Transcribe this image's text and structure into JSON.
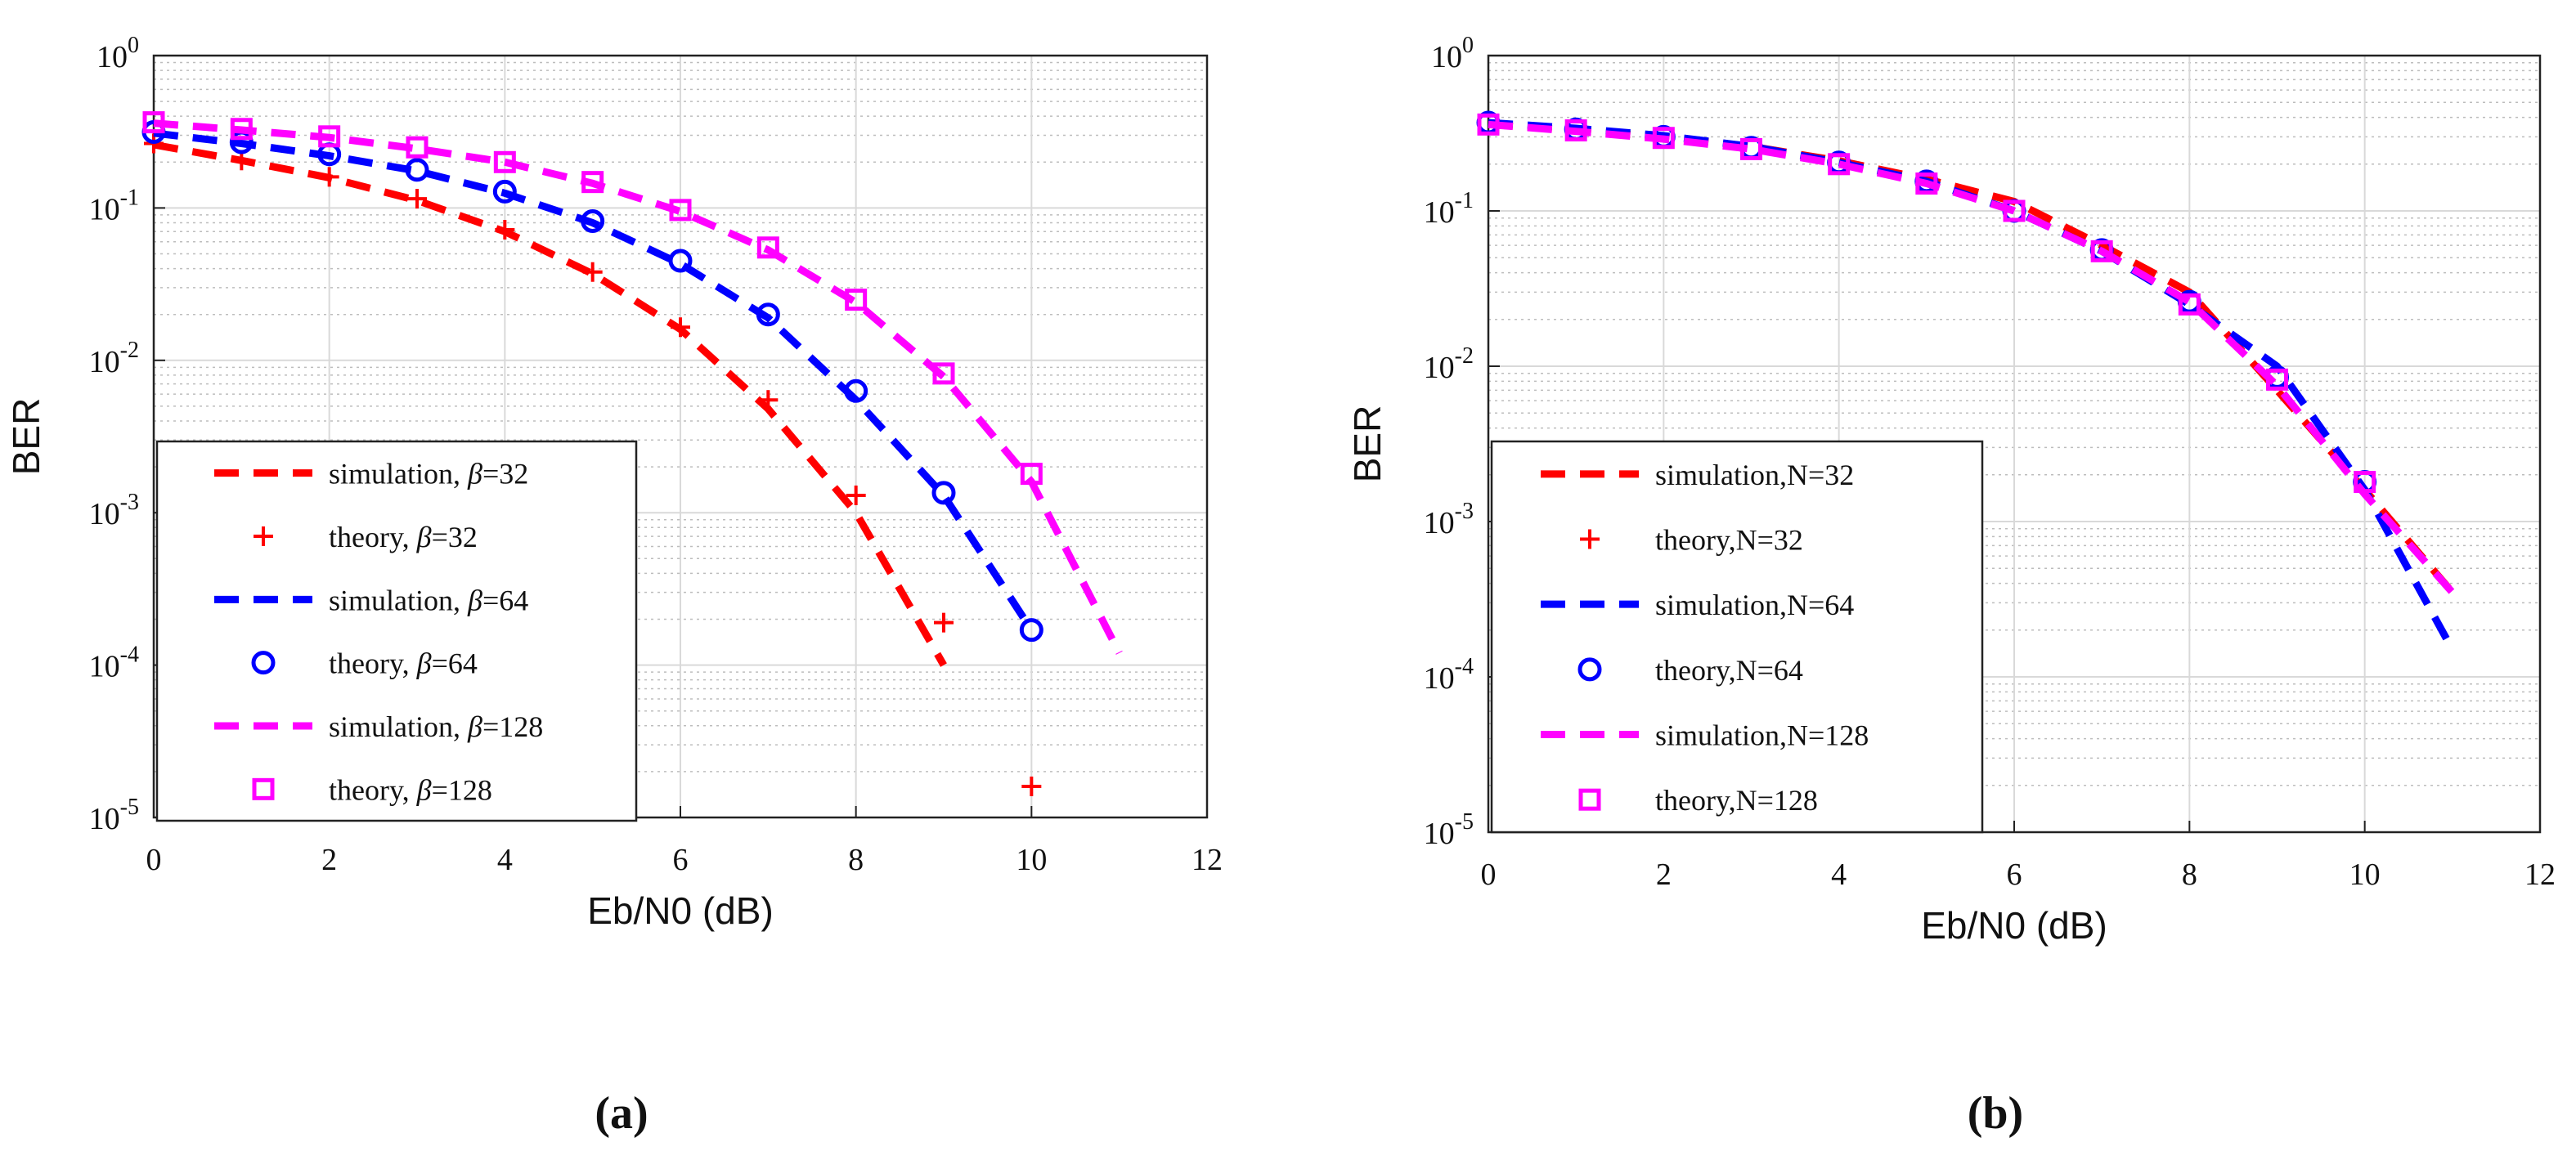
{
  "chart_data": [
    {
      "type": "line",
      "id": "a",
      "caption": "(a)",
      "title": "",
      "xlabel": "Eb/N0 (dB)",
      "ylabel": "BER",
      "xscale": "linear",
      "yscale": "log",
      "xlim": [
        0,
        12
      ],
      "ylim": [
        1e-05,
        1
      ],
      "xticks": [
        "0",
        "2",
        "4",
        "6",
        "8",
        "10",
        "12"
      ],
      "yticks": [
        {
          "base": "10",
          "exp": "0"
        },
        {
          "base": "10",
          "exp": "-1"
        },
        {
          "base": "10",
          "exp": "-2"
        },
        {
          "base": "10",
          "exp": "-3"
        },
        {
          "base": "10",
          "exp": "-4"
        },
        {
          "base": "10",
          "exp": "-5"
        }
      ],
      "grid": true,
      "legend_position": "lower-left",
      "series": [
        {
          "name": "simulation, β=32",
          "label_main": "simulation,",
          "label_var": "β",
          "label_val": "=32",
          "kind": "line",
          "style": "dashed",
          "color": "#ff0000",
          "x": [
            0,
            1,
            2,
            3,
            4,
            5,
            6,
            7,
            8,
            9
          ],
          "y": [
            0.26,
            0.205,
            0.158,
            0.112,
            0.07,
            0.037,
            0.016,
            0.0048,
            0.001,
            0.0001
          ]
        },
        {
          "name": "theory, β=32",
          "label_main": "theory,",
          "label_var": "β",
          "label_val": "=32",
          "kind": "marker",
          "marker": "plus",
          "color": "#ff0000",
          "x": [
            0,
            1,
            2,
            3,
            4,
            5,
            6,
            7,
            8,
            9,
            10
          ],
          "y": [
            0.265,
            0.205,
            0.16,
            0.115,
            0.072,
            0.038,
            0.0165,
            0.0055,
            0.0013,
            0.00019,
            1.6e-05
          ]
        },
        {
          "name": "simulation, β=64",
          "label_main": "simulation,",
          "label_var": "β",
          "label_val": "=64",
          "kind": "line",
          "style": "dashed",
          "color": "#0000ff",
          "x": [
            0,
            1,
            2,
            3,
            4,
            5,
            6,
            7,
            8,
            9,
            10
          ],
          "y": [
            0.31,
            0.265,
            0.22,
            0.175,
            0.125,
            0.08,
            0.043,
            0.019,
            0.0055,
            0.0013,
            0.00017
          ]
        },
        {
          "name": "theory, β=64",
          "label_main": "theory,",
          "label_var": "β",
          "label_val": "=64",
          "kind": "marker",
          "marker": "circle",
          "color": "#0000ff",
          "x": [
            0,
            1,
            2,
            3,
            4,
            5,
            6,
            7,
            8,
            9,
            10
          ],
          "y": [
            0.315,
            0.27,
            0.225,
            0.178,
            0.128,
            0.082,
            0.045,
            0.02,
            0.0063,
            0.00135,
            0.00017
          ]
        },
        {
          "name": "simulation, β=128",
          "label_main": "simulation,",
          "label_var": "β",
          "label_val": "=128",
          "kind": "line",
          "style": "dashed",
          "color": "#ff00ff",
          "x": [
            0,
            1,
            2,
            3,
            4,
            5,
            6,
            7,
            8,
            9,
            10,
            11
          ],
          "y": [
            0.36,
            0.325,
            0.29,
            0.245,
            0.2,
            0.145,
            0.095,
            0.053,
            0.024,
            0.0078,
            0.0016,
            0.00012
          ]
        },
        {
          "name": "theory, β=128",
          "label_main": "theory,",
          "label_var": "β",
          "label_val": "=128",
          "kind": "marker",
          "marker": "square",
          "color": "#ff00ff",
          "x": [
            0,
            1,
            2,
            3,
            4,
            5,
            6,
            7,
            8,
            9,
            10
          ],
          "y": [
            0.365,
            0.33,
            0.295,
            0.25,
            0.2,
            0.148,
            0.097,
            0.055,
            0.025,
            0.0082,
            0.0018
          ]
        }
      ]
    },
    {
      "type": "line",
      "id": "b",
      "caption": "(b)",
      "title": "",
      "xlabel": "Eb/N0 (dB)",
      "ylabel": "BER",
      "xscale": "linear",
      "yscale": "log",
      "xlim": [
        0,
        12
      ],
      "ylim": [
        1e-05,
        1
      ],
      "xticks": [
        "0",
        "2",
        "4",
        "6",
        "8",
        "10",
        "12"
      ],
      "yticks": [
        {
          "base": "10",
          "exp": "0"
        },
        {
          "base": "10",
          "exp": "-1"
        },
        {
          "base": "10",
          "exp": "-2"
        },
        {
          "base": "10",
          "exp": "-3"
        },
        {
          "base": "10",
          "exp": "-4"
        },
        {
          "base": "10",
          "exp": "-5"
        }
      ],
      "grid": true,
      "legend_position": "lower-left",
      "series": [
        {
          "name": "simulation,N=32",
          "label_main": "simulation,N=32",
          "label_var": "",
          "label_val": "",
          "kind": "line",
          "style": "dashed",
          "color": "#ff0000",
          "x": [
            0,
            1,
            2,
            3,
            4,
            5,
            6,
            7,
            8,
            9,
            10,
            11
          ],
          "y": [
            0.36,
            0.33,
            0.3,
            0.26,
            0.21,
            0.16,
            0.115,
            0.06,
            0.03,
            0.007,
            0.0016,
            0.00035
          ]
        },
        {
          "name": "theory,N=32",
          "label_main": "theory,N=32",
          "label_var": "",
          "label_val": "",
          "kind": "marker",
          "marker": "plus",
          "color": "#ff0000",
          "x": [],
          "y": []
        },
        {
          "name": "simulation,N=64",
          "label_main": "simulation,N=64",
          "label_var": "",
          "label_val": "",
          "kind": "line",
          "style": "dashed",
          "color": "#0000ff",
          "x": [
            0,
            1,
            2,
            3,
            4,
            5,
            6,
            7,
            8,
            9,
            10,
            11
          ],
          "y": [
            0.37,
            0.34,
            0.305,
            0.26,
            0.205,
            0.155,
            0.1,
            0.055,
            0.025,
            0.01,
            0.0016,
            0.00015
          ]
        },
        {
          "name": "theory,N=64",
          "label_main": "theory,N=64",
          "label_var": "",
          "label_val": "",
          "kind": "marker",
          "marker": "circle",
          "color": "#0000ff",
          "x": [
            0,
            1,
            2,
            3,
            4,
            5,
            6,
            7,
            8,
            9,
            10
          ],
          "y": [
            0.37,
            0.335,
            0.3,
            0.255,
            0.205,
            0.155,
            0.1,
            0.056,
            0.026,
            0.0085,
            0.0018
          ]
        },
        {
          "name": "simulation,N=128",
          "label_main": "simulation,N=128",
          "label_var": "",
          "label_val": "",
          "kind": "line",
          "style": "dashed",
          "color": "#ff00ff",
          "x": [
            0,
            1,
            2,
            3,
            4,
            5,
            6,
            7,
            8,
            9,
            10,
            11
          ],
          "y": [
            0.36,
            0.325,
            0.29,
            0.25,
            0.2,
            0.15,
            0.1,
            0.055,
            0.026,
            0.0075,
            0.0015,
            0.00035
          ]
        },
        {
          "name": "theory,N=128",
          "label_main": "theory,N=128",
          "label_var": "",
          "label_val": "",
          "kind": "marker",
          "marker": "square",
          "color": "#ff00ff",
          "x": [
            0,
            1,
            2,
            3,
            4,
            5,
            6,
            7,
            8,
            9,
            10
          ],
          "y": [
            0.36,
            0.33,
            0.295,
            0.25,
            0.2,
            0.15,
            0.1,
            0.055,
            0.025,
            0.0082,
            0.0018
          ]
        }
      ]
    }
  ]
}
